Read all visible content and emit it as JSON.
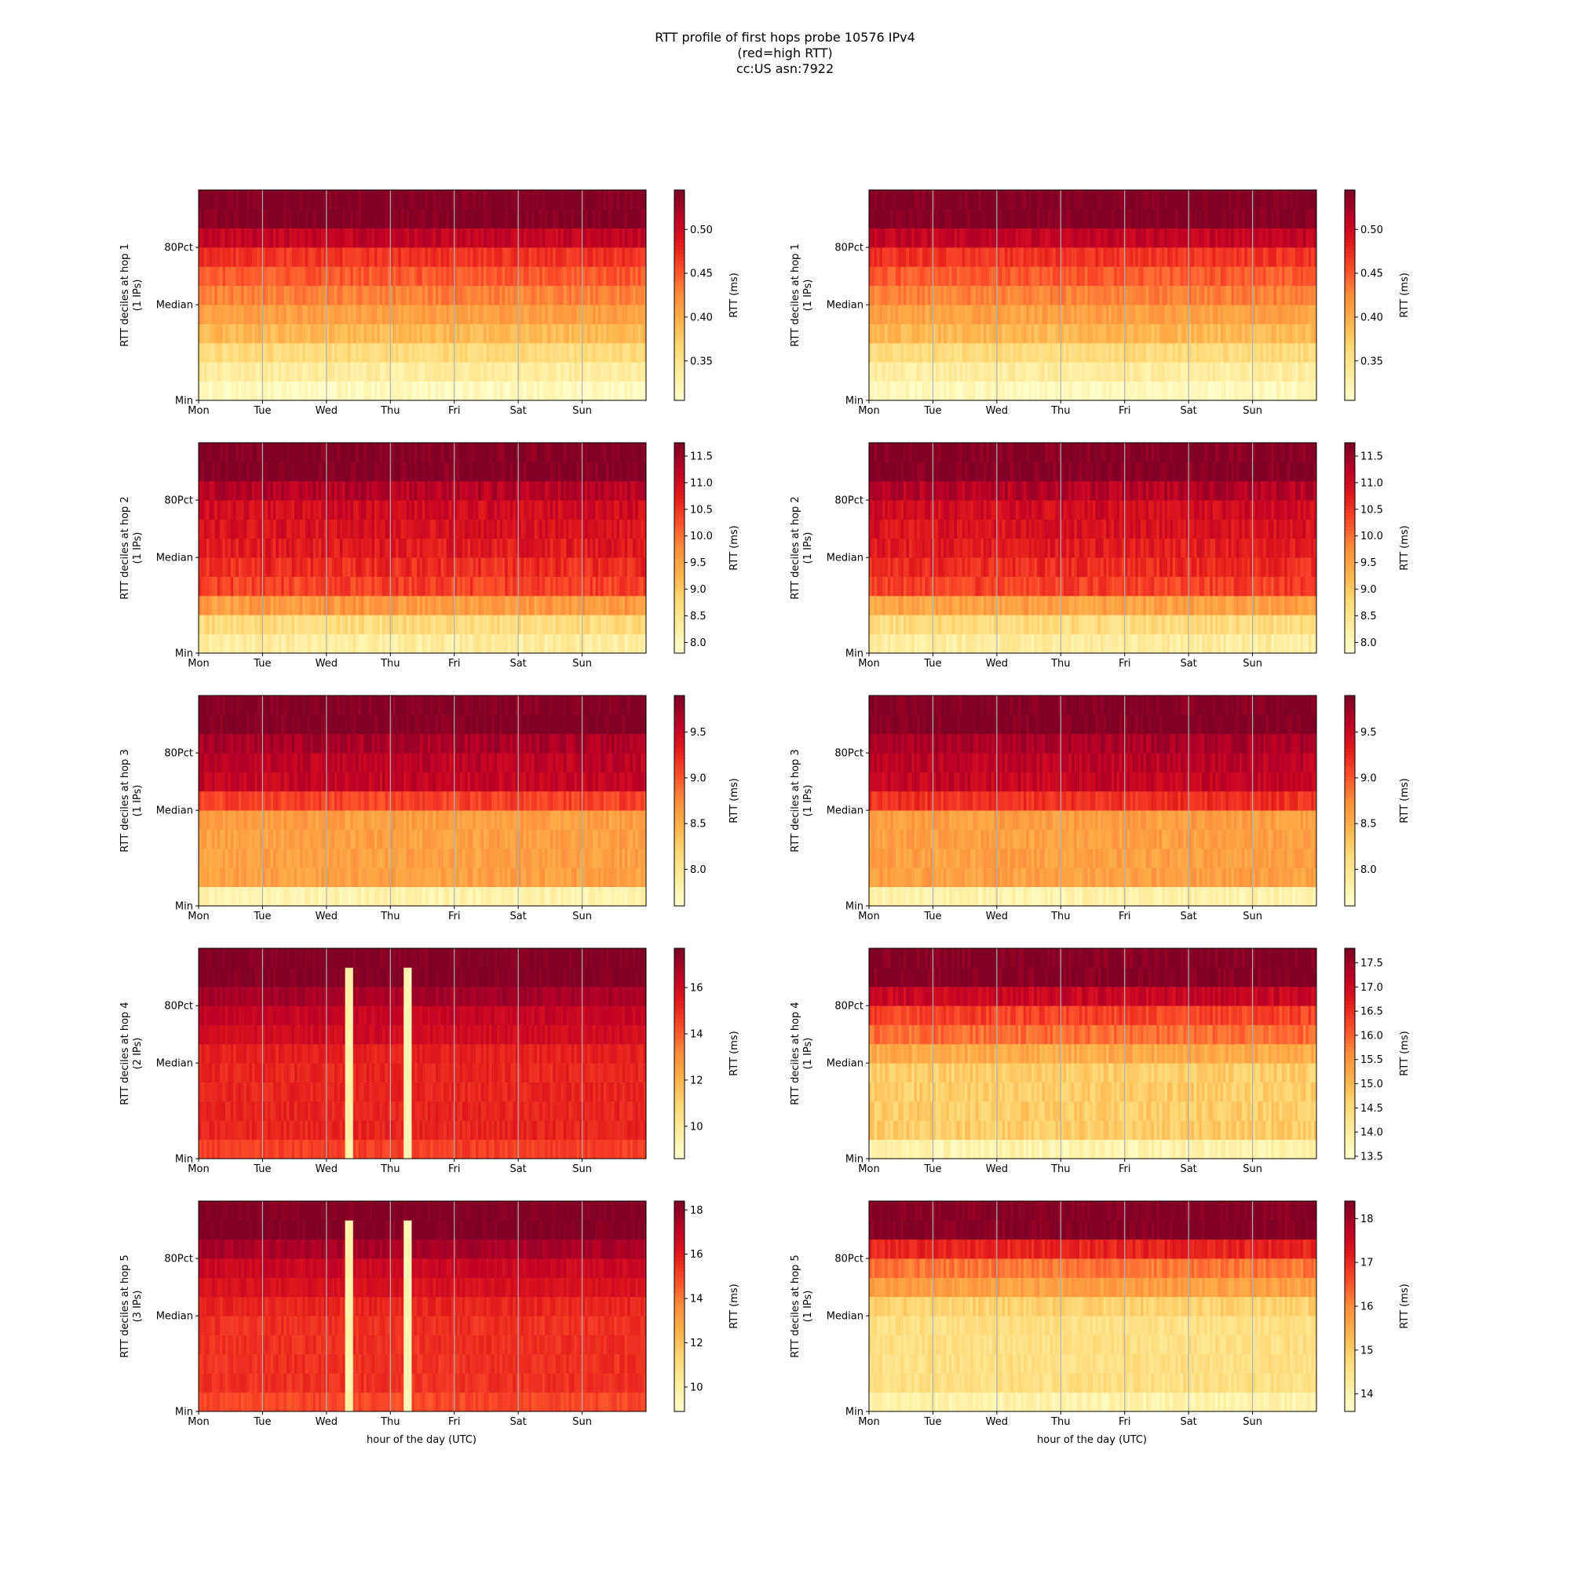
{
  "figure": {
    "title_lines": [
      "RTT profile of first hops probe 10576 IPv4",
      "(red=high RTT)",
      "cc:US asn:7922"
    ],
    "xlabel": "hour of the day (UTC)",
    "colormap": [
      "#ffffcc",
      "#ffeda0",
      "#fed976",
      "#feb24c",
      "#fd8d3c",
      "#fc4e2a",
      "#e31a1c",
      "#bd0026",
      "#800026"
    ],
    "axis_frame_color": "#000000",
    "day_gridline_color": "#b0b0b0"
  },
  "chart_data": [
    {
      "type": "heatmap",
      "column": "left",
      "hop": 1,
      "ylabel_line1": "RTT deciles at hop 1",
      "ylabel_line2": "(1 IPs)",
      "x_ticks": [
        "Mon",
        "Tue",
        "Wed",
        "Thu",
        "Fri",
        "Sat",
        "Sun"
      ],
      "y_ticks": [
        "80Pct",
        "Median",
        "Min"
      ],
      "colorbar_label": "RTT (ms)",
      "colorbar_ticks": [
        "0.50",
        "0.45",
        "0.40",
        "0.35"
      ],
      "colorbar_tick_values": [
        0.5,
        0.45,
        0.4,
        0.35
      ],
      "colorbar_range": [
        0.305,
        0.545
      ],
      "decile_rtt_ms": [
        0.315,
        0.335,
        0.36,
        0.39,
        0.41,
        0.43,
        0.45,
        0.47,
        0.51,
        0.545,
        0.545
      ],
      "variability_ms": 0.012,
      "spikes": []
    },
    {
      "type": "heatmap",
      "column": "right",
      "hop": 1,
      "ylabel_line1": "RTT deciles at hop 1",
      "ylabel_line2": "(1 IPs)",
      "x_ticks": [
        "Mon",
        "Tue",
        "Wed",
        "Thu",
        "Fri",
        "Sat",
        "Sun"
      ],
      "y_ticks": [
        "80Pct",
        "Median",
        "Min"
      ],
      "colorbar_label": "RTT (ms)",
      "colorbar_ticks": [
        "0.50",
        "0.45",
        "0.40",
        "0.35"
      ],
      "colorbar_tick_values": [
        0.5,
        0.45,
        0.4,
        0.35
      ],
      "colorbar_range": [
        0.305,
        0.545
      ],
      "decile_rtt_ms": [
        0.315,
        0.335,
        0.36,
        0.39,
        0.41,
        0.43,
        0.45,
        0.47,
        0.51,
        0.545,
        0.545
      ],
      "variability_ms": 0.012,
      "spikes": []
    },
    {
      "type": "heatmap",
      "column": "left",
      "hop": 2,
      "ylabel_line1": "RTT deciles at hop 2",
      "ylabel_line2": "(1 IPs)",
      "x_ticks": [
        "Mon",
        "Tue",
        "Wed",
        "Thu",
        "Fri",
        "Sat",
        "Sun"
      ],
      "y_ticks": [
        "80Pct",
        "Median",
        "Min"
      ],
      "colorbar_label": "RTT (ms)",
      "colorbar_ticks": [
        "11.5",
        "11.0",
        "10.5",
        "10.0",
        "9.5",
        "9.0",
        "8.5",
        "8.0"
      ],
      "colorbar_tick_values": [
        11.5,
        11.0,
        10.5,
        10.0,
        9.5,
        9.0,
        8.5,
        8.0
      ],
      "colorbar_range": [
        7.8,
        11.75
      ],
      "decile_rtt_ms": [
        8.3,
        8.7,
        9.6,
        10.4,
        10.6,
        10.8,
        10.9,
        11.0,
        11.3,
        11.75,
        11.75
      ],
      "variability_ms": 0.25,
      "spikes": []
    },
    {
      "type": "heatmap",
      "column": "right",
      "hop": 2,
      "ylabel_line1": "RTT deciles at hop 2",
      "ylabel_line2": "(1 IPs)",
      "x_ticks": [
        "Mon",
        "Tue",
        "Wed",
        "Thu",
        "Fri",
        "Sat",
        "Sun"
      ],
      "y_ticks": [
        "80Pct",
        "Median",
        "Min"
      ],
      "colorbar_label": "RTT (ms)",
      "colorbar_ticks": [
        "11.5",
        "11.0",
        "10.5",
        "10.0",
        "9.5",
        "9.0",
        "8.5",
        "8.0"
      ],
      "colorbar_tick_values": [
        11.5,
        11.0,
        10.5,
        10.0,
        9.5,
        9.0,
        8.5,
        8.0
      ],
      "colorbar_range": [
        7.8,
        11.75
      ],
      "decile_rtt_ms": [
        8.3,
        8.7,
        9.5,
        10.4,
        10.6,
        10.8,
        10.9,
        11.0,
        11.3,
        11.75,
        11.75
      ],
      "variability_ms": 0.25,
      "spikes": []
    },
    {
      "type": "heatmap",
      "column": "left",
      "hop": 3,
      "ylabel_line1": "RTT deciles at hop 3",
      "ylabel_line2": "(1 IPs)",
      "x_ticks": [
        "Mon",
        "Tue",
        "Wed",
        "Thu",
        "Fri",
        "Sat",
        "Sun"
      ],
      "y_ticks": [
        "80Pct",
        "Median",
        "Min"
      ],
      "colorbar_label": "RTT (ms)",
      "colorbar_ticks": [
        "9.5",
        "9.0",
        "8.5",
        "8.0"
      ],
      "colorbar_tick_values": [
        9.5,
        9.0,
        8.5,
        8.0
      ],
      "colorbar_range": [
        7.6,
        9.9
      ],
      "decile_rtt_ms": [
        7.8,
        8.6,
        8.6,
        8.6,
        8.62,
        9.1,
        9.55,
        9.6,
        9.7,
        9.9,
        9.9
      ],
      "variability_ms": 0.12,
      "spikes": []
    },
    {
      "type": "heatmap",
      "column": "right",
      "hop": 3,
      "ylabel_line1": "RTT deciles at hop 3",
      "ylabel_line2": "(1 IPs)",
      "x_ticks": [
        "Mon",
        "Tue",
        "Wed",
        "Thu",
        "Fri",
        "Sat",
        "Sun"
      ],
      "y_ticks": [
        "80Pct",
        "Median",
        "Min"
      ],
      "colorbar_label": "RTT (ms)",
      "colorbar_ticks": [
        "9.5",
        "9.0",
        "8.5",
        "8.0"
      ],
      "colorbar_tick_values": [
        9.5,
        9.0,
        8.5,
        8.0
      ],
      "colorbar_range": [
        7.6,
        9.9
      ],
      "decile_rtt_ms": [
        7.8,
        8.6,
        8.6,
        8.6,
        8.62,
        9.2,
        9.55,
        9.6,
        9.7,
        9.9,
        9.9
      ],
      "variability_ms": 0.12,
      "spikes": []
    },
    {
      "type": "heatmap",
      "column": "left",
      "hop": 4,
      "ylabel_line1": "RTT deciles at hop 4",
      "ylabel_line2": "(2 IPs)",
      "x_ticks": [
        "Mon",
        "Tue",
        "Wed",
        "Thu",
        "Fri",
        "Sat",
        "Sun"
      ],
      "y_ticks": [
        "80Pct",
        "Median",
        "Min"
      ],
      "colorbar_label": "RTT (ms)",
      "colorbar_ticks": [
        "16",
        "14",
        "12",
        "10"
      ],
      "colorbar_tick_values": [
        16,
        14,
        12,
        10
      ],
      "colorbar_range": [
        8.6,
        17.7
      ],
      "decile_rtt_ms": [
        14.6,
        15.2,
        15.2,
        15.2,
        15.2,
        15.3,
        16.0,
        16.3,
        17.0,
        17.7,
        17.7
      ],
      "variability_ms": 0.35,
      "spikes": [
        {
          "day": 3.25,
          "rtt_ms": 9.2
        },
        {
          "day": 2.35,
          "rtt_ms": 9.5
        }
      ]
    },
    {
      "type": "heatmap",
      "column": "right",
      "hop": 4,
      "ylabel_line1": "RTT deciles at hop 4",
      "ylabel_line2": "(1 IPs)",
      "x_ticks": [
        "Mon",
        "Tue",
        "Wed",
        "Thu",
        "Fri",
        "Sat",
        "Sun"
      ],
      "y_ticks": [
        "80Pct",
        "Median",
        "Min"
      ],
      "colorbar_label": "RTT (ms)",
      "colorbar_ticks": [
        "17.5",
        "17.0",
        "16.5",
        "16.0",
        "15.5",
        "15.0",
        "14.5",
        "14.0",
        "13.5"
      ],
      "colorbar_tick_values": [
        17.5,
        17.0,
        16.5,
        16.0,
        15.5,
        15.0,
        14.5,
        14.0,
        13.5
      ],
      "colorbar_range": [
        13.45,
        17.8
      ],
      "decile_rtt_ms": [
        13.8,
        14.7,
        14.7,
        14.7,
        14.7,
        15.2,
        15.9,
        16.3,
        17.1,
        17.8,
        17.8
      ],
      "variability_ms": 0.25,
      "spikes": []
    },
    {
      "type": "heatmap",
      "column": "left",
      "hop": 5,
      "ylabel_line1": "RTT deciles at hop 5",
      "ylabel_line2": "(3 IPs)",
      "x_ticks": [
        "Mon",
        "Tue",
        "Wed",
        "Thu",
        "Fri",
        "Sat",
        "Sun"
      ],
      "y_ticks": [
        "80Pct",
        "Median",
        "Min"
      ],
      "colorbar_label": "RTT (ms)",
      "colorbar_ticks": [
        "18",
        "16",
        "14",
        "12",
        "10"
      ],
      "colorbar_tick_values": [
        18,
        16,
        14,
        12,
        10
      ],
      "colorbar_range": [
        8.9,
        18.4
      ],
      "decile_rtt_ms": [
        15.0,
        15.5,
        15.5,
        15.5,
        15.5,
        15.8,
        16.4,
        16.8,
        17.6,
        18.4,
        18.4
      ],
      "variability_ms": 0.35,
      "spikes": [
        {
          "day": 3.25,
          "rtt_ms": 9.5
        },
        {
          "day": 2.35,
          "rtt_ms": 9.8
        }
      ]
    },
    {
      "type": "heatmap",
      "column": "right",
      "hop": 5,
      "ylabel_line1": "RTT deciles at hop 5",
      "ylabel_line2": "(1 IPs)",
      "x_ticks": [
        "Mon",
        "Tue",
        "Wed",
        "Thu",
        "Fri",
        "Sat",
        "Sun"
      ],
      "y_ticks": [
        "80Pct",
        "Median",
        "Min"
      ],
      "colorbar_label": "RTT (ms)",
      "colorbar_ticks": [
        "18",
        "17",
        "16",
        "15",
        "14"
      ],
      "colorbar_tick_values": [
        18,
        17,
        16,
        15,
        14
      ],
      "colorbar_range": [
        13.6,
        18.4
      ],
      "decile_rtt_ms": [
        14.0,
        14.6,
        14.6,
        14.6,
        14.6,
        14.9,
        15.7,
        16.2,
        17.1,
        18.4,
        18.4
      ],
      "variability_ms": 0.25,
      "spikes": []
    }
  ]
}
